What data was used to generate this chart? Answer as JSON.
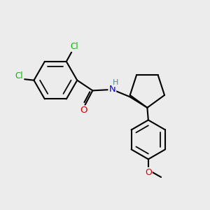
{
  "bg_color": "#ececec",
  "bond_color": "#000000",
  "bond_width": 1.5,
  "atom_colors": {
    "Cl": "#00bb00",
    "O": "#cc0000",
    "N": "#0000cc",
    "H": "#558888",
    "C": "#000000"
  },
  "font_size_atom": 9.5,
  "font_size_H": 8.0
}
